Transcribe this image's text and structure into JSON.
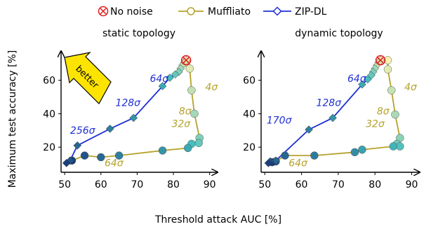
{
  "legend": {
    "items": [
      {
        "label": "No noise",
        "kind": "reference"
      },
      {
        "label": "Muffliato",
        "kind": "line",
        "color": "#b5a22a"
      },
      {
        "label": "ZIP-DL",
        "kind": "line",
        "color": "#1d2fd6"
      }
    ]
  },
  "colors": {
    "muffliato": "#b5a22a",
    "zipdl": "#1d2fd6",
    "nonoise": "#e11b1b"
  },
  "better_label": "better",
  "chart_data": [
    {
      "type": "line",
      "subtitle": "static topology",
      "xlabel": "Threshold attack AUC [%]",
      "ylabel": "Maximum test accuracy [%]",
      "xlim": [
        49,
        92
      ],
      "ylim": [
        5,
        77
      ],
      "xticks": [
        50,
        60,
        70,
        80,
        90
      ],
      "yticks": [
        20,
        40,
        60
      ],
      "no_noise": {
        "x": 83.5,
        "y": 72
      },
      "series": [
        {
          "name": "Muffliato",
          "x": [
            83.5,
            84.5,
            85.0,
            85.8,
            87.2,
            87.0,
            85.0,
            84.0,
            77.0,
            65.0,
            60.0,
            55.5,
            52.0
          ],
          "y": [
            70.5,
            67.0,
            54.0,
            40.0,
            25.5,
            22.5,
            22.0,
            19.5,
            18.0,
            15.0,
            14.0,
            15.0,
            12.0
          ]
        },
        {
          "name": "ZIP-DL",
          "x": [
            83.5,
            83.0,
            82.5,
            82.0,
            81.5,
            80.5,
            79.0,
            77.0,
            69.0,
            62.5,
            53.5,
            51.5,
            50.5
          ],
          "y": [
            72.0,
            70.5,
            69.0,
            67.0,
            65.0,
            63.5,
            61.5,
            56.5,
            37.5,
            31.0,
            21.0,
            12.0,
            10.5
          ]
        }
      ],
      "annotations": [
        {
          "text": "4σ",
          "x": 88.8,
          "y": 54,
          "color": "#b5a22a"
        },
        {
          "text": "8σ",
          "x": 81.5,
          "y": 39.5,
          "color": "#b5a22a"
        },
        {
          "text": "32σ",
          "x": 79.5,
          "y": 32,
          "color": "#b5a22a"
        },
        {
          "text": "64σ",
          "x": 61.0,
          "y": 8.5,
          "color": "#b5a22a"
        },
        {
          "text": "64σ",
          "x": 73.5,
          "y": 59,
          "color": "#1d2fd6"
        },
        {
          "text": "128σ",
          "x": 64.0,
          "y": 44.5,
          "color": "#1d2fd6"
        },
        {
          "text": "256σ",
          "x": 51.5,
          "y": 28,
          "color": "#1d2fd6"
        }
      ]
    },
    {
      "type": "line",
      "subtitle": "dynamic topology",
      "xlabel": "Threshold attack AUC [%]",
      "ylabel": "",
      "xlim": [
        49,
        92
      ],
      "ylim": [
        5,
        77
      ],
      "xticks": [
        50,
        60,
        70,
        80,
        90
      ],
      "yticks": [
        20,
        40,
        60
      ],
      "no_noise": {
        "x": 81.5,
        "y": 72
      },
      "series": [
        {
          "name": "Muffliato",
          "x": [
            83.5,
            83.5,
            84.5,
            85.5,
            86.8,
            86.0,
            86.8,
            85.0,
            76.5,
            74.5,
            63.5,
            55.5,
            53.0,
            52.0
          ],
          "y": [
            72.0,
            66.5,
            54.0,
            39.5,
            25.5,
            22.0,
            20.5,
            20.5,
            18.5,
            17.0,
            15.0,
            15.0,
            11.5,
            11.0
          ]
        },
        {
          "name": "ZIP-DL",
          "x": [
            81.5,
            81.0,
            80.5,
            80.0,
            79.5,
            79.0,
            78.0,
            76.5,
            68.5,
            62.0,
            53.0,
            51.5,
            51.0
          ],
          "y": [
            72.0,
            70.5,
            69.0,
            67.0,
            65.0,
            63.0,
            60.5,
            57.5,
            37.5,
            30.5,
            12.0,
            11.5,
            10.5
          ]
        }
      ],
      "annotations": [
        {
          "text": "4σ",
          "x": 88.0,
          "y": 54,
          "color": "#b5a22a"
        },
        {
          "text": "8σ",
          "x": 80.5,
          "y": 39.5,
          "color": "#b5a22a"
        },
        {
          "text": "32σ",
          "x": 77.5,
          "y": 32,
          "color": "#b5a22a"
        },
        {
          "text": "64σ",
          "x": 56.5,
          "y": 8.5,
          "color": "#b5a22a"
        },
        {
          "text": "64σ",
          "x": 72.5,
          "y": 59,
          "color": "#1d2fd6"
        },
        {
          "text": "128σ",
          "x": 64.0,
          "y": 44.5,
          "color": "#1d2fd6"
        },
        {
          "text": "170σ",
          "x": 50.5,
          "y": 34,
          "color": "#1d2fd6"
        }
      ]
    }
  ]
}
